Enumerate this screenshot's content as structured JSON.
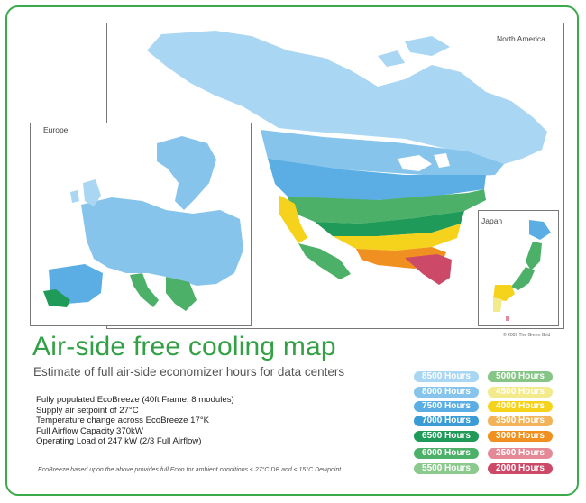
{
  "map": {
    "region_labels": {
      "north_america": "North America",
      "europe": "Europe",
      "japan": "Japan"
    },
    "copyright": "© 2009 The Green Grid"
  },
  "title": "Air-side free cooling map",
  "subtitle": "Estimate of full air-side economizer hours for data centers",
  "specs": [
    "Fully populated EcoBreeze (40ft Frame, 8 modules)",
    "Supply air setpoint of 27°C",
    "Temperature change across EcoBreeze 17°K",
    "Full Airflow Capacity 370kW",
    "Operating Load of 247 kW (2/3 Full Airflow)"
  ],
  "footnote": "EcoBreeze based upon the above provides full Econ for ambient conditions ≤ 27°C DB and ≤ 15°C Dewpoint",
  "legend": [
    {
      "label": "8500 Hours",
      "color": "#a9d6f2"
    },
    {
      "label": "8000 Hours",
      "color": "#86c4ec"
    },
    {
      "label": "7500 Hours",
      "color": "#5aaee3"
    },
    {
      "label": "7000 Hours",
      "color": "#3a9bd5"
    },
    {
      "label": "6500 Hours",
      "color": "#1f9a58"
    },
    {
      "label": "6000 Hours",
      "color": "#4cb068"
    },
    {
      "label": "5500 Hours",
      "color": "#8bc98d"
    },
    {
      "label": "5000 Hours",
      "color": "#86c585"
    },
    {
      "label": "4500 Hours",
      "color": "#f3ea8c"
    },
    {
      "label": "4000 Hours",
      "color": "#f5d21c"
    },
    {
      "label": "3500 Hours",
      "color": "#f2b35a"
    },
    {
      "label": "3000 Hours",
      "color": "#f09020"
    },
    {
      "label": "2500 Hours",
      "color": "#e48a96"
    },
    {
      "label": "2000 Hours",
      "color": "#cc4a68"
    }
  ]
}
